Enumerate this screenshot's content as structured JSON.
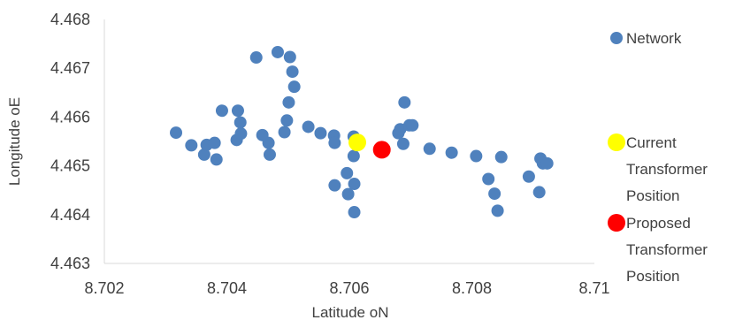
{
  "chart_data": {
    "type": "scatter",
    "title": "",
    "xlabel": "Latitude oN",
    "ylabel": "Longitude oE",
    "xlim": [
      8.702,
      8.71
    ],
    "ylim": [
      4.463,
      4.468
    ],
    "x_ticks": [
      "8.702",
      "8.704",
      "8.706",
      "8.708",
      "8.71"
    ],
    "y_ticks": [
      "4.463",
      "4.464",
      "4.465",
      "4.466",
      "4.467",
      "4.468"
    ],
    "grid": false,
    "legend_position": "right",
    "series": [
      {
        "name": "Network",
        "color": "#4f81bd",
        "points": [
          [
            8.70317,
            4.46568
          ],
          [
            8.70342,
            4.46542
          ],
          [
            8.70363,
            4.46523
          ],
          [
            8.70367,
            4.46543
          ],
          [
            8.7038,
            4.46547
          ],
          [
            8.70383,
            4.46513
          ],
          [
            8.70392,
            4.46613
          ],
          [
            8.70416,
            4.46553
          ],
          [
            8.70418,
            4.46613
          ],
          [
            8.70422,
            4.46589
          ],
          [
            8.70423,
            4.46566
          ],
          [
            8.70448,
            4.46722
          ],
          [
            8.70458,
            4.46563
          ],
          [
            8.70468,
            4.46547
          ],
          [
            8.7047,
            4.46523
          ],
          [
            8.70483,
            4.46733
          ],
          [
            8.70494,
            4.46569
          ],
          [
            8.70498,
            4.46593
          ],
          [
            8.70501,
            4.4663
          ],
          [
            8.70503,
            4.46723
          ],
          [
            8.70507,
            4.46693
          ],
          [
            8.7051,
            4.46662
          ],
          [
            8.70533,
            4.4658
          ],
          [
            8.70553,
            4.46567
          ],
          [
            8.70575,
            4.46562
          ],
          [
            8.70576,
            4.46547
          ],
          [
            8.70576,
            4.4646
          ],
          [
            8.70596,
            4.46485
          ],
          [
            8.70598,
            4.46442
          ],
          [
            8.70607,
            4.4656
          ],
          [
            8.70607,
            4.4652
          ],
          [
            8.70608,
            4.46463
          ],
          [
            8.70608,
            4.46405
          ],
          [
            8.7068,
            4.46567
          ],
          [
            8.70683,
            4.46575
          ],
          [
            8.70688,
            4.46545
          ],
          [
            8.7069,
            4.4663
          ],
          [
            8.70698,
            4.46583
          ],
          [
            8.70703,
            4.46583
          ],
          [
            8.70731,
            4.46535
          ],
          [
            8.70767,
            4.46527
          ],
          [
            8.70807,
            4.4652
          ],
          [
            8.70827,
            4.46473
          ],
          [
            8.70837,
            4.46443
          ],
          [
            8.70842,
            4.46408
          ],
          [
            8.70848,
            4.46518
          ],
          [
            8.70893,
            4.46478
          ],
          [
            8.7091,
            4.46446
          ],
          [
            8.70912,
            4.46515
          ],
          [
            8.70916,
            4.46505
          ],
          [
            8.70923,
            4.46505
          ]
        ]
      },
      {
        "name": "Current Transformer Position",
        "color": "#ffff00",
        "points": [
          [
            8.70613,
            4.46548
          ]
        ]
      },
      {
        "name": "Proposed Transformer Position",
        "color": "#ff0000",
        "points": [
          [
            8.70653,
            4.46533
          ]
        ]
      }
    ],
    "legend": [
      {
        "series": "Network",
        "lines": [
          "Network"
        ],
        "color": "#4f81bd"
      },
      {
        "series": "Current Transformer Position",
        "lines": [
          "Current",
          "Transformer",
          "Position"
        ],
        "color": "#ffff00"
      },
      {
        "series": "Proposed Transformer Position",
        "lines": [
          "Proposed",
          "Transformer",
          "Position"
        ],
        "color": "#ff0000"
      }
    ]
  }
}
